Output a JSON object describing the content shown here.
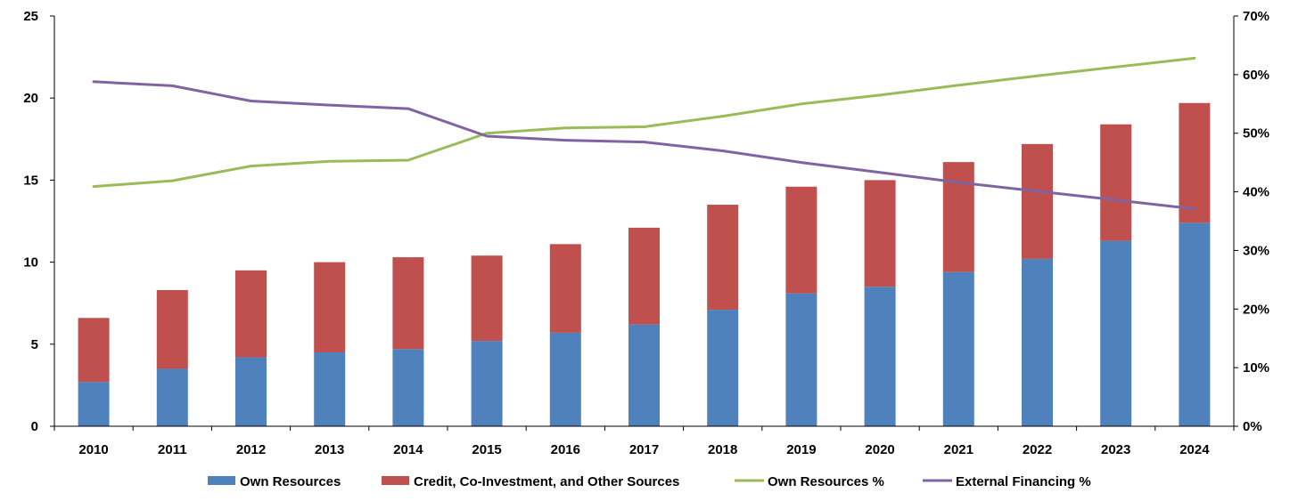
{
  "chart_data": {
    "type": "bar",
    "stacked": true,
    "title": "",
    "xlabel": "",
    "ylabel": "",
    "categories": [
      "2010",
      "2011",
      "2012",
      "2013",
      "2014",
      "2015",
      "2016",
      "2017",
      "2018",
      "2019",
      "2020",
      "2021",
      "2022",
      "2023",
      "2024"
    ],
    "series": [
      {
        "name": "Own Resources",
        "type": "bar",
        "axis": "left",
        "color": "#4F81BD",
        "values": [
          2.7,
          3.5,
          4.2,
          4.5,
          4.7,
          5.2,
          5.7,
          6.2,
          7.1,
          8.1,
          8.5,
          9.4,
          10.2,
          11.3,
          12.4
        ]
      },
      {
        "name": "Credit, Co-Investment, and Other Sources",
        "type": "bar",
        "axis": "left",
        "color": "#C0504D",
        "values": [
          3.9,
          4.8,
          5.3,
          5.5,
          5.6,
          5.2,
          5.4,
          5.9,
          6.4,
          6.5,
          6.5,
          6.7,
          7.0,
          7.1,
          7.3
        ]
      },
      {
        "name": "Own Resources %",
        "type": "line",
        "axis": "right",
        "color": "#9BBB59",
        "values": [
          40.9,
          41.9,
          44.4,
          45.2,
          45.4,
          50.0,
          50.9,
          51.1,
          52.9,
          55.0,
          56.5,
          58.2,
          59.8,
          61.3,
          62.8
        ]
      },
      {
        "name": "External Financing %",
        "type": "line",
        "axis": "right",
        "color": "#8064A2",
        "values": [
          58.8,
          58.1,
          55.5,
          54.8,
          54.2,
          49.5,
          48.8,
          48.5,
          47.0,
          45.0,
          43.3,
          41.6,
          40.1,
          38.6,
          37.1
        ]
      }
    ],
    "y_left": {
      "min": 0,
      "max": 25,
      "ticks": [
        "0",
        "5",
        "10",
        "15",
        "20",
        "25"
      ]
    },
    "y_right": {
      "min": 0,
      "max": 70,
      "ticks": [
        "0%",
        "10%",
        "20%",
        "30%",
        "40%",
        "50%",
        "60%",
        "70%"
      ]
    },
    "grid": false,
    "legend_position": "bottom"
  }
}
